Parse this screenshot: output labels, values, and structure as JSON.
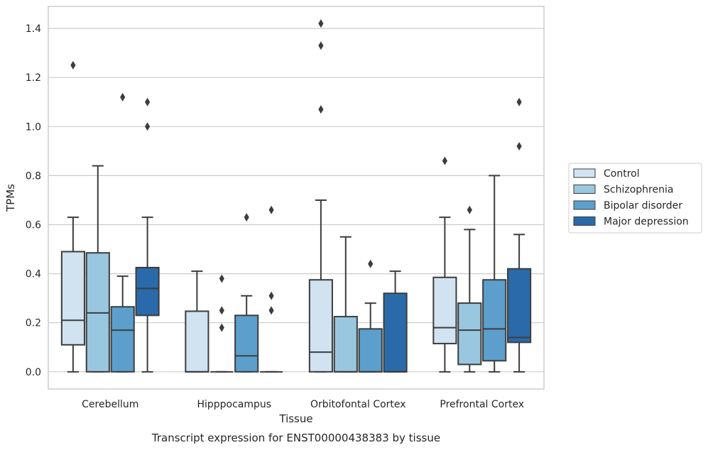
{
  "chart_data": {
    "type": "box",
    "xlabel": "Tissue",
    "ylabel": "TPMs",
    "caption": "Transcript expression for ENST00000438383 by tissue",
    "ylim": [
      -0.07,
      1.49
    ],
    "yticks": [
      "0.0",
      "0.2",
      "0.4",
      "0.6",
      "0.8",
      "1.0",
      "1.2",
      "1.4"
    ],
    "grid": true,
    "legend_position": "right",
    "categories": [
      "Cerebellum",
      "Hipppocampus",
      "Orbitofontal Cortex",
      "Prefrontal Cortex"
    ],
    "series": [
      {
        "name": "Control",
        "color": "#d1e2f1",
        "boxes": [
          {
            "min": 0.0,
            "q1": 0.11,
            "median": 0.21,
            "q3": 0.49,
            "max": 0.63,
            "outliers": [
              1.25
            ]
          },
          {
            "min": 0.0,
            "q1": 0.0,
            "median": 0.0,
            "q3": 0.247,
            "max": 0.41,
            "outliers": []
          },
          {
            "min": 0.0,
            "q1": 0.0,
            "median": 0.08,
            "q3": 0.375,
            "max": 0.7,
            "outliers": [
              1.07,
              1.33,
              1.42
            ]
          },
          {
            "min": 0.0,
            "q1": 0.115,
            "median": 0.18,
            "q3": 0.385,
            "max": 0.63,
            "outliers": [
              0.86
            ]
          }
        ]
      },
      {
        "name": "Schizophrenia",
        "color": "#9ac7e0",
        "boxes": [
          {
            "min": 0.0,
            "q1": 0.0,
            "median": 0.24,
            "q3": 0.485,
            "max": 0.84,
            "outliers": []
          },
          {
            "min": 0.0,
            "q1": 0.0,
            "median": 0.0,
            "q3": 0.0,
            "max": 0.0,
            "outliers": [
              0.18,
              0.25,
              0.38
            ]
          },
          {
            "min": 0.0,
            "q1": 0.0,
            "median": 0.0,
            "q3": 0.225,
            "max": 0.55,
            "outliers": []
          },
          {
            "min": 0.0,
            "q1": 0.03,
            "median": 0.17,
            "q3": 0.28,
            "max": 0.58,
            "outliers": [
              0.66
            ]
          }
        ]
      },
      {
        "name": "Bipolar disorder",
        "color": "#5c9fcc",
        "boxes": [
          {
            "min": 0.0,
            "q1": 0.0,
            "median": 0.17,
            "q3": 0.265,
            "max": 0.39,
            "outliers": [
              1.12
            ]
          },
          {
            "min": 0.0,
            "q1": 0.0,
            "median": 0.065,
            "q3": 0.23,
            "max": 0.31,
            "outliers": [
              0.63
            ]
          },
          {
            "min": 0.0,
            "q1": 0.0,
            "median": 0.0,
            "q3": 0.175,
            "max": 0.28,
            "outliers": [
              0.44
            ]
          },
          {
            "min": 0.0,
            "q1": 0.045,
            "median": 0.175,
            "q3": 0.375,
            "max": 0.8,
            "outliers": []
          }
        ]
      },
      {
        "name": "Major depression",
        "color": "#2a6aaa",
        "boxes": [
          {
            "min": 0.0,
            "q1": 0.23,
            "median": 0.34,
            "q3": 0.425,
            "max": 0.63,
            "outliers": [
              1.0,
              1.1
            ]
          },
          {
            "min": 0.0,
            "q1": 0.0,
            "median": 0.0,
            "q3": 0.0,
            "max": 0.0,
            "outliers": [
              0.25,
              0.31,
              0.66
            ]
          },
          {
            "min": 0.0,
            "q1": 0.0,
            "median": 0.0,
            "q3": 0.32,
            "max": 0.41,
            "outliers": []
          },
          {
            "min": 0.0,
            "q1": 0.12,
            "median": 0.14,
            "q3": 0.42,
            "max": 0.56,
            "outliers": [
              0.92,
              1.1
            ]
          }
        ]
      }
    ]
  }
}
